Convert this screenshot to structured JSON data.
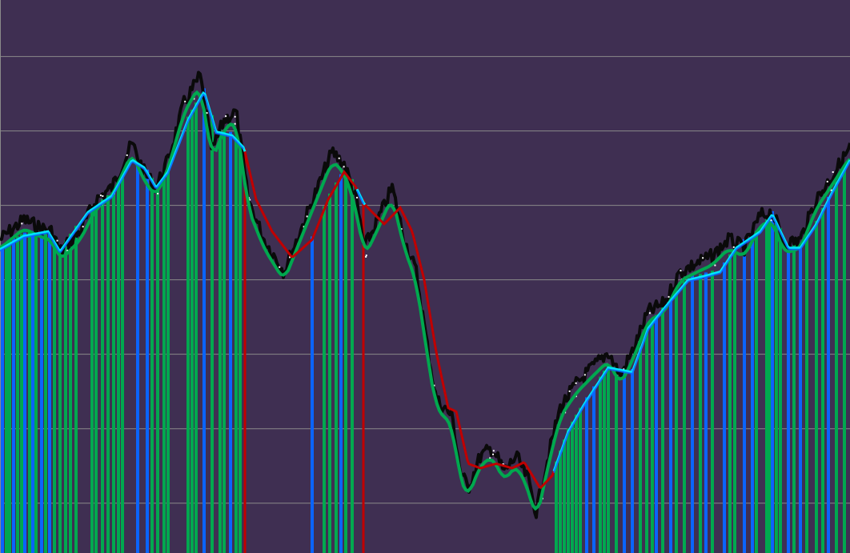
{
  "chart_data": {
    "type": "line",
    "title": "",
    "xlabel": "",
    "ylabel": "",
    "xlim": [
      0,
      106.2
    ],
    "ylim": [
      0.33,
      7.76
    ],
    "grid": true,
    "gridlines_y": [
      1,
      2,
      3,
      4,
      5,
      6,
      7
    ],
    "colors": {
      "background": "#3f2f52",
      "grid": "#8a8a8a",
      "price": "#0a0a0a",
      "fast": "#00a84f",
      "slow_up": "#00e5ff",
      "slow_down": "#c00000",
      "bar_green": "#00a84f",
      "bar_blue": "#0a64ff",
      "bar_red": "#c00000"
    },
    "series": [
      {
        "role": "price",
        "points": [
          [
            0,
            4.54
          ],
          [
            3,
            4.81
          ],
          [
            5,
            4.7
          ],
          [
            6.5,
            4.65
          ],
          [
            7.5,
            4.38
          ],
          [
            10,
            4.65
          ],
          [
            12,
            5.08
          ],
          [
            14,
            5.24
          ],
          [
            16.5,
            5.83
          ],
          [
            18,
            5.45
          ],
          [
            19.5,
            5.24
          ],
          [
            21,
            5.61
          ],
          [
            23,
            6.37
          ],
          [
            25,
            6.74
          ],
          [
            26.5,
            5.72
          ],
          [
            28,
            6.15
          ],
          [
            29.5,
            6.26
          ],
          [
            31,
            5.08
          ],
          [
            33,
            4.54
          ],
          [
            35.5,
            4.11
          ],
          [
            37.5,
            4.65
          ],
          [
            39.5,
            5.18
          ],
          [
            41.5,
            5.72
          ],
          [
            43,
            5.56
          ],
          [
            44.5,
            5.08
          ],
          [
            45.5,
            4.43
          ],
          [
            47,
            4.75
          ],
          [
            49,
            5.24
          ],
          [
            50.5,
            4.54
          ],
          [
            52,
            4.11
          ],
          [
            53.5,
            3.03
          ],
          [
            54.5,
            2.39
          ],
          [
            56.5,
            2.17
          ],
          [
            57.5,
            1.42
          ],
          [
            58.5,
            1.2
          ],
          [
            60,
            1.63
          ],
          [
            61.5,
            1.74
          ],
          [
            63,
            1.42
          ],
          [
            64.5,
            1.63
          ],
          [
            66,
            1.31
          ],
          [
            67,
            0.88
          ],
          [
            68.5,
            1.63
          ],
          [
            70,
            2.28
          ],
          [
            72,
            2.6
          ],
          [
            74,
            2.82
          ],
          [
            76,
            3.03
          ],
          [
            77.5,
            2.71
          ],
          [
            79,
            3.03
          ],
          [
            81,
            3.57
          ],
          [
            83,
            3.68
          ],
          [
            85,
            4.11
          ],
          [
            87,
            4.22
          ],
          [
            89,
            4.32
          ],
          [
            91,
            4.54
          ],
          [
            93,
            4.43
          ],
          [
            95,
            4.86
          ],
          [
            96.5,
            4.91
          ],
          [
            98,
            4.48
          ],
          [
            100,
            4.54
          ],
          [
            102,
            5.08
          ],
          [
            104,
            5.4
          ],
          [
            106.2,
            5.77
          ]
        ]
      },
      {
        "role": "slow-average",
        "points": [
          [
            0,
            4.41
          ],
          [
            3,
            4.59
          ],
          [
            6,
            4.65
          ],
          [
            7.5,
            4.38
          ],
          [
            11,
            4.91
          ],
          [
            14,
            5.13
          ],
          [
            16.5,
            5.61
          ],
          [
            18,
            5.51
          ],
          [
            19.5,
            5.24
          ],
          [
            21,
            5.45
          ],
          [
            23.5,
            6.15
          ],
          [
            25.5,
            6.53
          ],
          [
            27,
            5.99
          ],
          [
            29,
            5.94
          ],
          [
            30.5,
            5.77
          ],
          [
            32,
            5.08
          ],
          [
            34,
            4.65
          ],
          [
            36.5,
            4.3
          ],
          [
            39,
            4.54
          ],
          [
            41,
            5.08
          ],
          [
            43,
            5.45
          ],
          [
            44.5,
            5.24
          ],
          [
            45.5,
            5.02
          ],
          [
            48,
            4.75
          ],
          [
            50,
            4.97
          ],
          [
            51.5,
            4.65
          ],
          [
            53,
            4.0
          ],
          [
            54.5,
            3.03
          ],
          [
            56,
            2.28
          ],
          [
            57,
            2.23
          ],
          [
            58.5,
            1.53
          ],
          [
            60,
            1.47
          ],
          [
            62,
            1.53
          ],
          [
            64,
            1.47
          ],
          [
            65.5,
            1.55
          ],
          [
            67.5,
            1.2
          ],
          [
            69,
            1.37
          ],
          [
            71,
            1.96
          ],
          [
            73,
            2.33
          ],
          [
            76,
            2.82
          ],
          [
            79,
            2.76
          ],
          [
            81,
            3.35
          ],
          [
            83,
            3.62
          ],
          [
            86,
            4.0
          ],
          [
            88,
            4.05
          ],
          [
            90,
            4.11
          ],
          [
            92,
            4.43
          ],
          [
            95,
            4.65
          ],
          [
            96.5,
            4.88
          ],
          [
            98.5,
            4.43
          ],
          [
            100,
            4.43
          ],
          [
            102,
            4.75
          ],
          [
            104,
            5.18
          ],
          [
            106.2,
            5.61
          ]
        ],
        "down_ranges": [
          [
            30.5,
            44.5
          ],
          [
            45.5,
            69
          ]
        ]
      }
    ],
    "bars": {
      "blue": [
        0.3,
        1.7,
        3.1,
        4.1,
        5.2,
        6.2,
        17.2,
        18.4,
        25.5,
        28.8,
        39,
        42.6,
        73.3,
        74.2,
        78,
        79,
        82,
        83.8,
        86.5,
        88.2,
        90.5,
        93,
        94,
        96.5,
        98.5,
        100,
        103.5
      ],
      "red": [
        30.6,
        45.4
      ],
      "green": [
        0.8,
        1.2,
        2.2,
        2.7,
        3.7,
        4.5,
        5.7,
        6.8,
        7.5,
        8.2,
        8.8,
        9.5,
        11.5,
        12,
        12.8,
        13.5,
        14.2,
        14.8,
        15.3,
        19,
        19.7,
        20.5,
        21,
        23.5,
        24,
        24.5,
        26.5,
        27.5,
        28,
        29.5,
        30,
        40.5,
        41.2,
        42,
        43.2,
        44,
        69.5,
        70,
        70.5,
        71,
        71.5,
        72,
        72.5,
        75,
        75.5,
        76,
        77,
        80,
        80.8,
        81.5,
        82.8,
        84.5,
        85.5,
        87.5,
        89,
        91.2,
        91.8,
        94.5,
        95.8,
        96.2,
        97,
        97.5,
        99.2,
        100.8,
        102,
        102.8,
        104.5,
        105.5
      ]
    }
  }
}
